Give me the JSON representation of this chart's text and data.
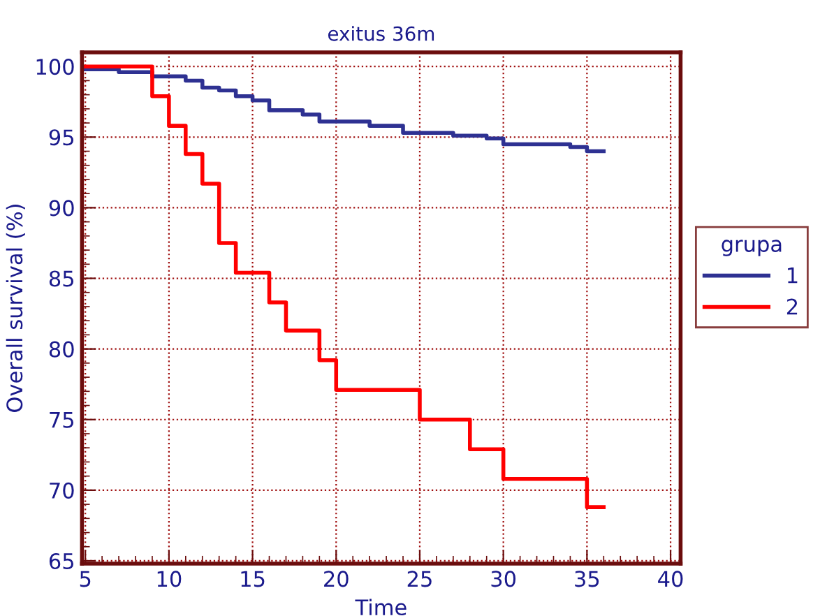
{
  "chart_data": {
    "type": "step",
    "title": "exitus 36m",
    "xlabel": "Time",
    "ylabel": "Overall survival (%)",
    "legend_title": "grupa",
    "legend": "right",
    "grid": true,
    "line_style": "solid",
    "xlim": [
      4.8,
      40.6
    ],
    "xticks": [
      5,
      10,
      15,
      20,
      25,
      30,
      35,
      40
    ],
    "ylim": [
      64.8,
      101
    ],
    "yticks": [
      65,
      70,
      75,
      80,
      85,
      90,
      95,
      100
    ],
    "series": [
      {
        "name": "1",
        "color": "#2e3192",
        "x": [
          5,
          7,
          9,
          11,
          12,
          13,
          14,
          15,
          16,
          18,
          19,
          22,
          24,
          27,
          29,
          30,
          34,
          35,
          36
        ],
        "values": [
          99.8,
          99.6,
          99.3,
          99.0,
          98.5,
          98.3,
          97.9,
          97.6,
          96.9,
          96.6,
          96.1,
          95.8,
          95.3,
          95.1,
          94.9,
          94.5,
          94.3,
          94.0,
          94.0
        ]
      },
      {
        "name": "2",
        "color": "#ff0000",
        "x": [
          5,
          9,
          10,
          11,
          12,
          13,
          14,
          16,
          17,
          19,
          20,
          25,
          28,
          30,
          35,
          36
        ],
        "values": [
          100,
          97.9,
          95.8,
          93.8,
          91.7,
          87.5,
          85.4,
          83.3,
          81.3,
          79.2,
          77.1,
          75.0,
          72.9,
          70.8,
          68.8,
          68.8
        ]
      }
    ]
  }
}
